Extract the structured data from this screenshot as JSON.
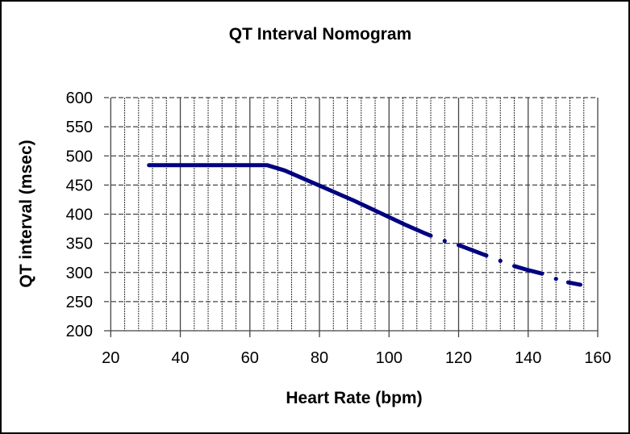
{
  "chart_data": {
    "type": "line",
    "title": "QT Interval Nomogram",
    "xlabel": "Heart Rate (bpm)",
    "ylabel": "QT interval (msec)",
    "xlim": [
      20,
      160
    ],
    "ylim": [
      200,
      600
    ],
    "x_ticks": [
      20,
      40,
      60,
      80,
      100,
      120,
      140,
      160
    ],
    "y_ticks": [
      200,
      250,
      300,
      350,
      400,
      450,
      500,
      550,
      600
    ],
    "x_minor_step": 4,
    "grid": true,
    "line_color": "#000080",
    "segments": [
      {
        "x": [
          31,
          40,
          50,
          60,
          65,
          70,
          75,
          80,
          85,
          90,
          95,
          100,
          105,
          110,
          112
        ],
        "y": [
          484,
          484,
          484,
          484,
          484,
          475,
          462,
          449,
          436,
          423,
          409,
          395,
          381,
          368,
          363
        ]
      },
      {
        "x": [
          116
        ],
        "y": [
          354
        ]
      },
      {
        "x": [
          120,
          124,
          128
        ],
        "y": [
          347,
          338,
          329
        ]
      },
      {
        "x": [
          132
        ],
        "y": [
          320
        ]
      },
      {
        "x": [
          136,
          140,
          144
        ],
        "y": [
          311,
          304,
          298
        ]
      },
      {
        "x": [
          148
        ],
        "y": [
          289
        ]
      },
      {
        "x": [
          151.5,
          155
        ],
        "y": [
          283,
          279
        ]
      }
    ]
  }
}
